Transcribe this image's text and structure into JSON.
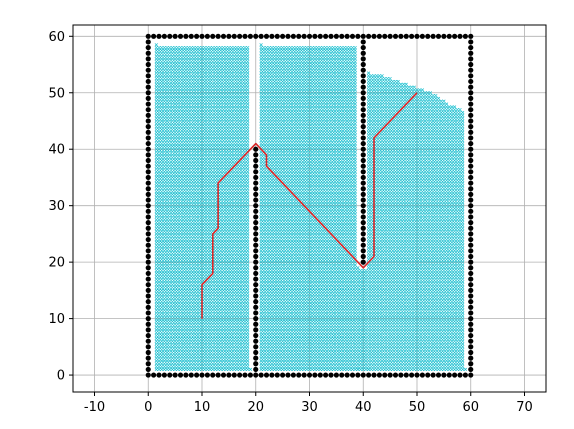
{
  "chart_data": {
    "type": "scatter",
    "title": "",
    "xlabel": "",
    "ylabel": "",
    "xlim": [
      -14,
      74
    ],
    "ylim": [
      -3,
      62
    ],
    "xticks": [
      -10,
      0,
      10,
      20,
      30,
      40,
      50,
      60,
      70
    ],
    "yticks": [
      0,
      10,
      20,
      30,
      40,
      50,
      60
    ],
    "grid": true,
    "legend": null,
    "obstacle_walls": {
      "color": "#000000",
      "marker": "dot",
      "spacing": 1,
      "segments": [
        {
          "from": [
            0,
            0
          ],
          "to": [
            60,
            0
          ]
        },
        {
          "from": [
            60,
            0
          ],
          "to": [
            60,
            60
          ]
        },
        {
          "from": [
            0,
            60
          ],
          "to": [
            60,
            60
          ]
        },
        {
          "from": [
            0,
            0
          ],
          "to": [
            0,
            60
          ]
        },
        {
          "from": [
            20,
            0
          ],
          "to": [
            20,
            40
          ]
        },
        {
          "from": [
            40,
            20
          ],
          "to": [
            40,
            60
          ]
        }
      ]
    },
    "explored_region": {
      "color": "#17becf",
      "marker": "x",
      "spacing": 0.5,
      "polygons": [
        [
          [
            1.5,
            1
          ],
          [
            19,
            1
          ],
          [
            19,
            58.5
          ],
          [
            1.5,
            58.5
          ]
        ],
        [
          [
            21,
            1
          ],
          [
            39,
            1
          ],
          [
            39,
            58.5
          ],
          [
            21,
            58.5
          ]
        ],
        [
          [
            39,
            1
          ],
          [
            41,
            1
          ],
          [
            41,
            19
          ],
          [
            39,
            19
          ]
        ],
        [
          [
            41,
            1
          ],
          [
            59,
            1
          ],
          [
            59,
            46.5
          ],
          [
            57.5,
            47.5
          ],
          [
            56,
            48
          ],
          [
            53,
            50
          ],
          [
            50,
            51
          ],
          [
            47,
            52
          ],
          [
            44,
            53
          ],
          [
            41,
            53.5
          ]
        ]
      ]
    },
    "path": {
      "color": "#d62728",
      "x": [
        10,
        10,
        11,
        12,
        12,
        13,
        13,
        20,
        22,
        22,
        40,
        42,
        42,
        50
      ],
      "y": [
        10,
        16,
        17,
        18,
        25,
        26,
        34,
        41,
        39,
        37,
        19,
        21,
        42,
        50
      ]
    }
  }
}
